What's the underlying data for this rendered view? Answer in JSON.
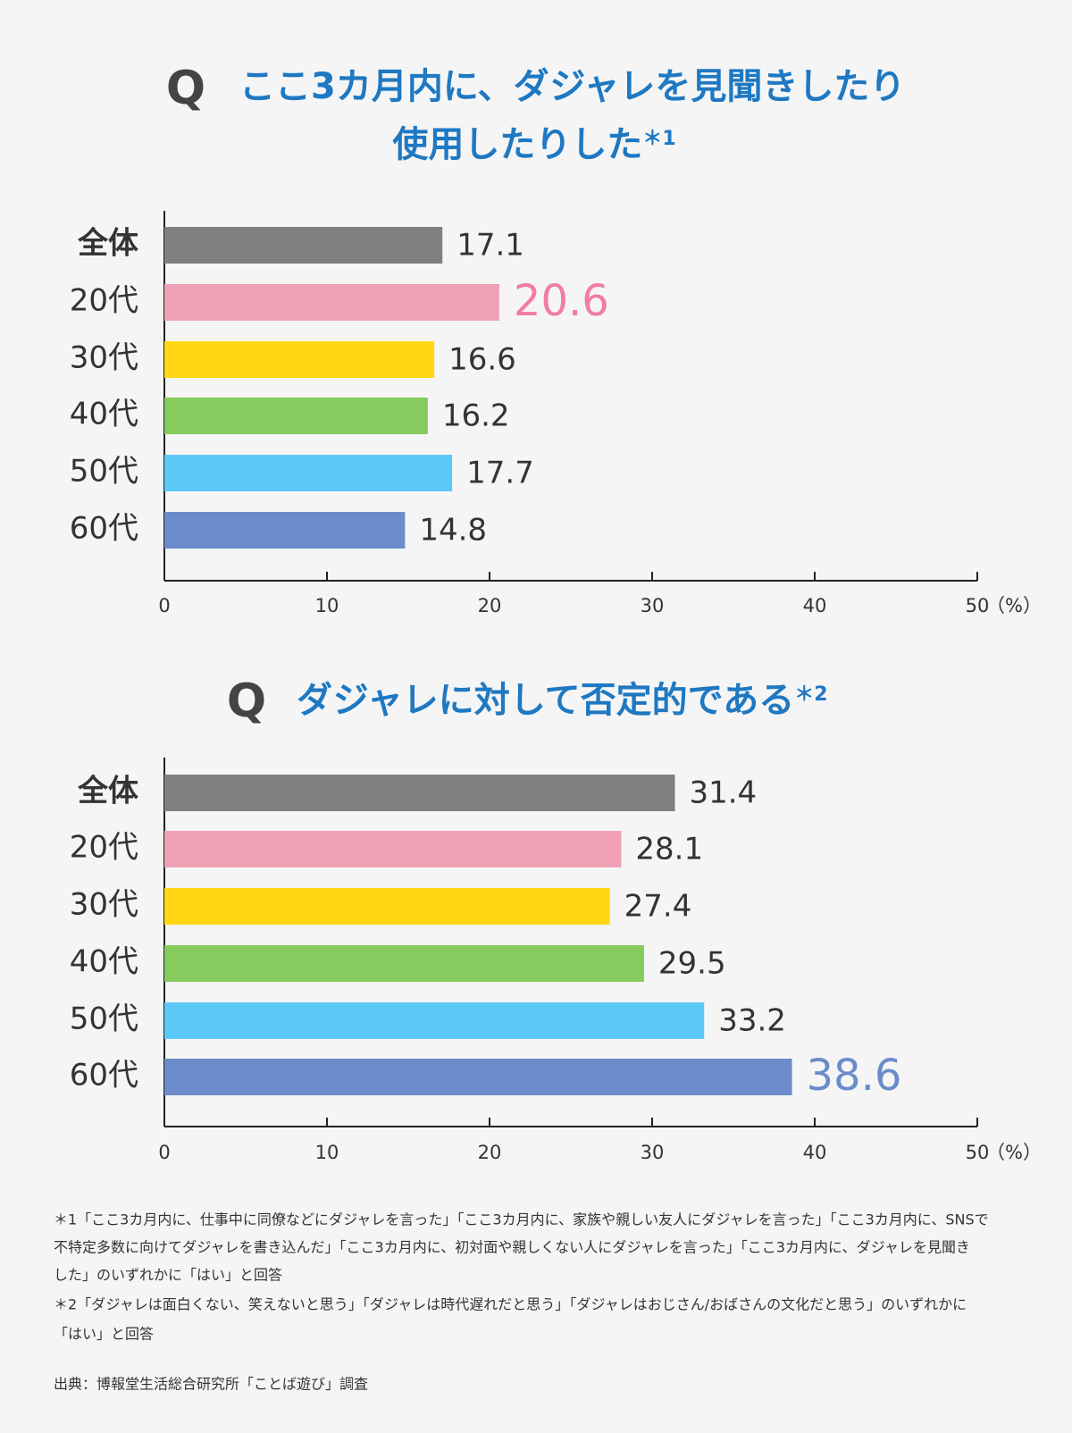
{
  "chart_data": [
    {
      "type": "bar",
      "q_label": "Q",
      "title": [
        "ここ3カ月内に、ダジャレを見聞きしたり",
        "使用したりした"
      ],
      "title_note": "＊1",
      "categories": [
        "全体",
        "20代",
        "30代",
        "40代",
        "50代",
        "60代"
      ],
      "values": [
        17.1,
        20.6,
        16.6,
        16.2,
        17.7,
        14.8
      ],
      "colors": [
        "#808080",
        "#f0a1b5",
        "#ffd813",
        "#85cb5e",
        "#5bc8f5",
        "#6b8cc9"
      ],
      "highlight_index": 1,
      "highlight_color": "#f27ca2",
      "xlim": [
        0,
        50
      ],
      "xticks": [
        0,
        10,
        20,
        30,
        40,
        50
      ],
      "x_unit": "（%）"
    },
    {
      "type": "bar",
      "q_label": "Q",
      "title": [
        "ダジャレに対して否定的である"
      ],
      "title_note": "＊2",
      "categories": [
        "全体",
        "20代",
        "30代",
        "40代",
        "50代",
        "60代"
      ],
      "values": [
        31.4,
        28.1,
        27.4,
        29.5,
        33.2,
        38.6
      ],
      "colors": [
        "#808080",
        "#f0a1b5",
        "#ffd813",
        "#85cb5e",
        "#5bc8f5",
        "#6b8cc9"
      ],
      "highlight_index": 5,
      "highlight_color": "#6b8cc9",
      "xlim": [
        0,
        50
      ],
      "xticks": [
        0,
        10,
        20,
        30,
        40,
        50
      ],
      "x_unit": "（%）"
    }
  ],
  "footnotes": [
    "＊1「ここ3カ月内に、仕事中に同僚などにダジャレを言った」「ここ3カ月内に、家族や親しい友人にダジャレを言った」「ここ3カ月内に、SNSで",
    "不特定多数に向けてダジャレを書き込んだ」「ここ3カ月内に、初対面や親しくない人にダジャレを言った」「ここ3カ月内に、ダジャレを見聞き",
    "した」のいずれかに「はい」と回答",
    "＊2「ダジャレは面白くない、笑えないと思う」「ダジャレは時代遅れだと思う」「ダジャレはおじさん/おばさんの文化だと思う」のいずれかに",
    "「はい」と回答"
  ],
  "source": "出典：博報堂生活総合研究所「ことば遊び」調査"
}
